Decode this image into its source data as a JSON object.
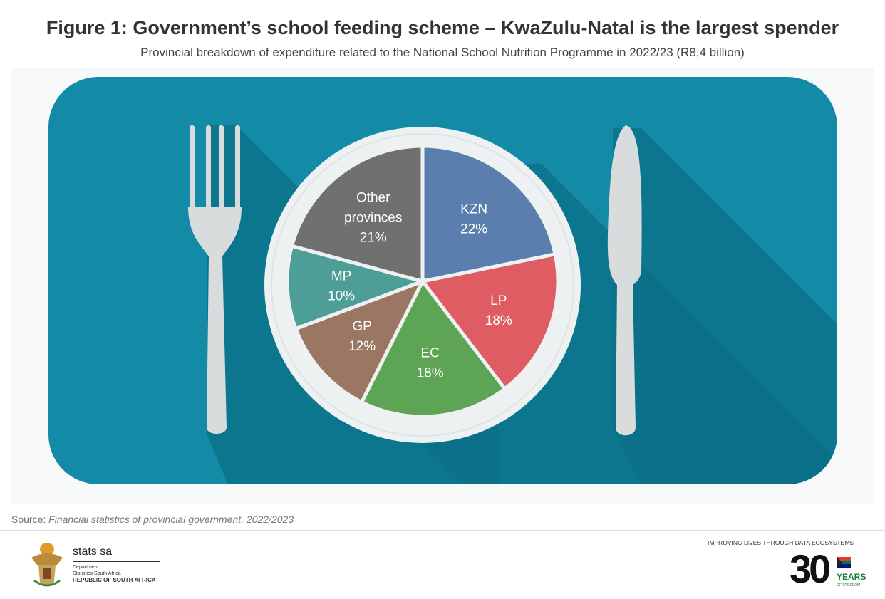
{
  "title": "Figure 1: Government’s school feeding scheme – KwaZulu-Natal is the largest spender",
  "subtitle": "Provincial breakdown of expenditure related to the National School Nutrition Programme in 2022/23 (R8,4 billion)",
  "source_label": "Source: ",
  "source_text": "Financial statistics of provincial government, 2022/2023",
  "footer": {
    "org_name": "stats sa",
    "dept_line1": "Department:",
    "dept_line2": "Statistics South Africa",
    "dept_line3": "REPUBLIC OF SOUTH AFRICA",
    "tagline": "IMPROVING LIVES THROUGH DATA ECOSYSTEMS",
    "badge_number": "30",
    "badge_text": "YEARS",
    "badge_sub": "OF FREEDOM"
  },
  "chart_data": {
    "type": "pie",
    "title": "Figure 1: Government’s school feeding scheme – KwaZulu-Natal is the largest spender",
    "subtitle": "Provincial breakdown of expenditure related to the National School Nutrition Programme in 2022/23 (R8,4 billion)",
    "start": "12 o'clock, clockwise",
    "slices": [
      {
        "label": "KZN",
        "value": 22,
        "text": "22%",
        "color": "#5a7fae"
      },
      {
        "label": "LP",
        "value": 18,
        "text": "18%",
        "color": "#e05c63"
      },
      {
        "label": "EC",
        "value": 18,
        "text": "18%",
        "color": "#5ea455"
      },
      {
        "label": "GP",
        "value": 12,
        "text": "12%",
        "color": "#9b7763"
      },
      {
        "label": "MP",
        "value": 10,
        "text": "10%",
        "color": "#4e9e98"
      },
      {
        "label": "Other provinces",
        "value": 21,
        "text": "21%",
        "color": "#707070"
      }
    ]
  },
  "colors": {
    "placemat": "#138aa6",
    "shadow": "#0a6f86",
    "plate": "#eef1f2"
  }
}
